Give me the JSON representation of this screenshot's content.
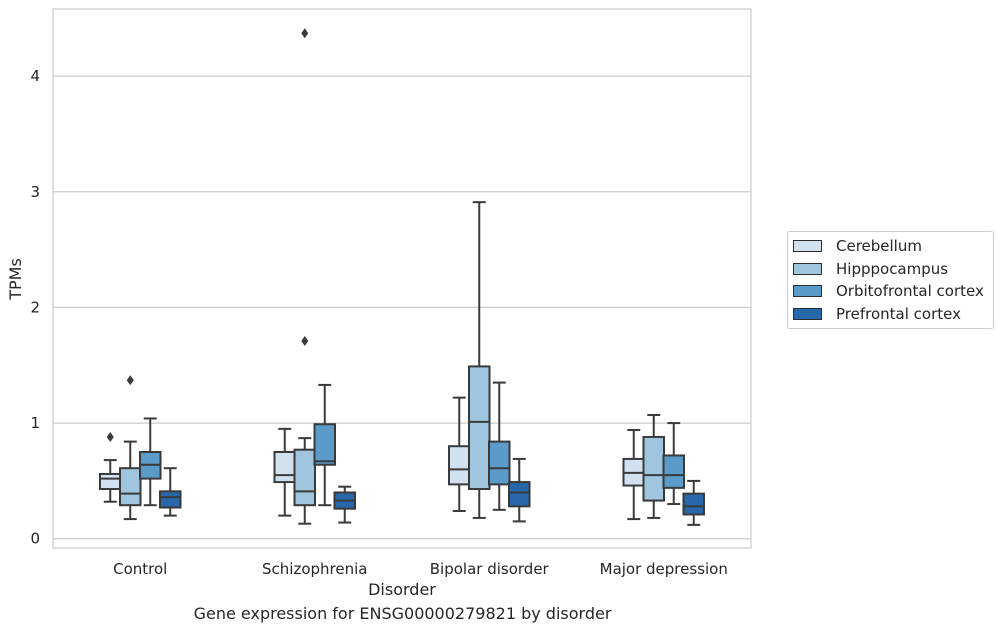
{
  "chart_data": {
    "type": "box",
    "caption": "Gene expression for ENSG00000279821 by disorder",
    "xlabel": "Disorder",
    "ylabel": "TPMs",
    "ylim": [
      -0.08,
      4.58
    ],
    "yticks": [
      0,
      1,
      2,
      3,
      4
    ],
    "grid": "horizontal",
    "legend_position": "right",
    "categories": [
      "Control",
      "Schizophrenia",
      "Bipolar disorder",
      "Major depression"
    ],
    "series": [
      {
        "name": "Cerebellum",
        "color": "#d1e1f0",
        "boxes": [
          {
            "whislo": 0.32,
            "q1": 0.43,
            "med": 0.52,
            "q3": 0.56,
            "whishi": 0.68,
            "fliers": [
              0.88
            ]
          },
          {
            "whislo": 0.2,
            "q1": 0.49,
            "med": 0.55,
            "q3": 0.75,
            "whishi": 0.95,
            "fliers": []
          },
          {
            "whislo": 0.24,
            "q1": 0.47,
            "med": 0.6,
            "q3": 0.8,
            "whishi": 1.22,
            "fliers": []
          },
          {
            "whislo": 0.17,
            "q1": 0.46,
            "med": 0.57,
            "q3": 0.69,
            "whishi": 0.94,
            "fliers": []
          }
        ]
      },
      {
        "name": "Hipppocampus",
        "color": "#9fc6de",
        "boxes": [
          {
            "whislo": 0.17,
            "q1": 0.29,
            "med": 0.39,
            "q3": 0.61,
            "whishi": 0.84,
            "fliers": [
              1.37
            ]
          },
          {
            "whislo": 0.13,
            "q1": 0.29,
            "med": 0.41,
            "q3": 0.77,
            "whishi": 0.87,
            "fliers": [
              1.71,
              4.37
            ]
          },
          {
            "whislo": 0.18,
            "q1": 0.43,
            "med": 1.01,
            "q3": 1.49,
            "whishi": 2.91,
            "fliers": []
          },
          {
            "whislo": 0.18,
            "q1": 0.33,
            "med": 0.55,
            "q3": 0.88,
            "whishi": 1.07,
            "fliers": []
          }
        ]
      },
      {
        "name": "Orbitofrontal cortex",
        "color": "#5a9bca",
        "boxes": [
          {
            "whislo": 0.29,
            "q1": 0.52,
            "med": 0.64,
            "q3": 0.75,
            "whishi": 1.04,
            "fliers": []
          },
          {
            "whislo": 0.29,
            "q1": 0.64,
            "med": 0.67,
            "q3": 0.99,
            "whishi": 1.33,
            "fliers": []
          },
          {
            "whislo": 0.25,
            "q1": 0.47,
            "med": 0.61,
            "q3": 0.84,
            "whishi": 1.35,
            "fliers": []
          },
          {
            "whislo": 0.3,
            "q1": 0.44,
            "med": 0.55,
            "q3": 0.72,
            "whishi": 1.0,
            "fliers": []
          }
        ]
      },
      {
        "name": "Prefrontal cortex",
        "color": "#2867a9",
        "boxes": [
          {
            "whislo": 0.2,
            "q1": 0.27,
            "med": 0.36,
            "q3": 0.41,
            "whishi": 0.61,
            "fliers": []
          },
          {
            "whislo": 0.14,
            "q1": 0.26,
            "med": 0.33,
            "q3": 0.4,
            "whishi": 0.45,
            "fliers": []
          },
          {
            "whislo": 0.15,
            "q1": 0.28,
            "med": 0.4,
            "q3": 0.49,
            "whishi": 0.69,
            "fliers": []
          },
          {
            "whislo": 0.12,
            "q1": 0.21,
            "med": 0.28,
            "q3": 0.39,
            "whishi": 0.5,
            "fliers": []
          }
        ]
      }
    ]
  }
}
